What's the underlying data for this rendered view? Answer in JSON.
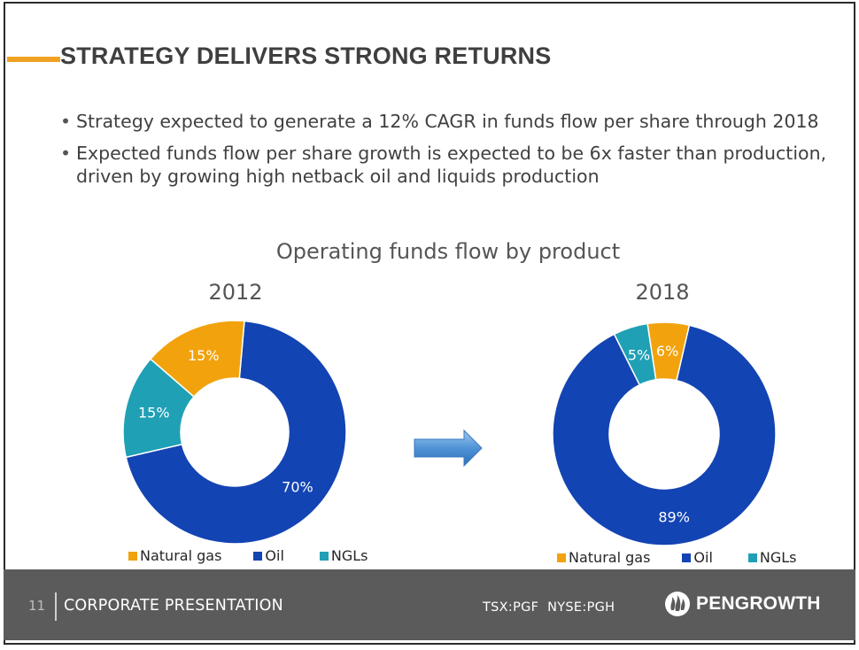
{
  "slide": {
    "title": "STRATEGY DELIVERS STRONG RETURNS",
    "bullets": [
      "Strategy expected to generate a 12% CAGR in funds flow per share through 2018",
      "Expected funds flow per share growth is expected to be 6x faster than production, driven by growing high netback oil and liquids production"
    ]
  },
  "chart_data": {
    "title": "Operating funds flow by product",
    "type": "pie",
    "colors": {
      "Natural gas": "#f2a20c",
      "Oil": "#1344b3",
      "NGLs": "#1fa0b5"
    },
    "legend": [
      "Natural gas",
      "Oil",
      "NGLs"
    ],
    "legend_position": "bottom",
    "charts": [
      {
        "label": "2012",
        "slices": [
          {
            "name": "Oil",
            "value": 70,
            "label": "70%"
          },
          {
            "name": "NGLs",
            "value": 15,
            "label": "15%"
          },
          {
            "name": "Natural gas",
            "value": 15,
            "label": "15%"
          }
        ]
      },
      {
        "label": "2018",
        "slices": [
          {
            "name": "Oil",
            "value": 89,
            "label": "89%"
          },
          {
            "name": "NGLs",
            "value": 5,
            "label": "5%"
          },
          {
            "name": "Natural gas",
            "value": 6,
            "label": "6%"
          }
        ]
      }
    ]
  },
  "footer": {
    "page_number": "11",
    "presentation": "CORPORATE PRESENTATION",
    "ticker": "TSX:PGF  NYSE:PGH",
    "logo": "PENGROWTH",
    "logo_icon": "pengrowth-flame-icon"
  }
}
